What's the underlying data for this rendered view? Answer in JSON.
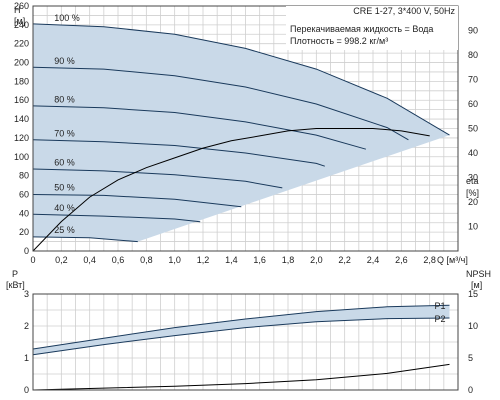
{
  "chart_data": [
    {
      "type": "line",
      "name": "head",
      "header": {
        "model": "CRE 1-27, 3*400 V, 50Hz",
        "liquid": "Перекачиваемая жидкость = Вода",
        "density": "Плотность = 998.2 кг/м³"
      },
      "ylabel_left": [
        "H",
        "[м]"
      ],
      "ylabel_right": [
        "eta",
        "[%]"
      ],
      "xlabel": "Q [м³/ч]",
      "xlim": [
        0,
        3.0
      ],
      "ylim_left": [
        0,
        260
      ],
      "ylim_right": [
        0,
        100
      ],
      "x_ticks": [
        "0",
        "0,2",
        "0,4",
        "0,6",
        "0,8",
        "1,0",
        "1,2",
        "1,4",
        "1,6",
        "1,8",
        "2,0",
        "2,2",
        "2,4",
        "2,6",
        "2,8"
      ],
      "y_ticks_left": [
        "0",
        "20",
        "40",
        "60",
        "80",
        "100",
        "120",
        "140",
        "160",
        "180",
        "200",
        "220",
        "240",
        "260"
      ],
      "y_ticks_right": [
        "10",
        "20",
        "30",
        "40",
        "50",
        "60",
        "70",
        "80",
        "90"
      ],
      "grid": true,
      "colors": {
        "curve": "#1a3a5c",
        "envelope": "#c9d9e8",
        "eta": "#000000"
      },
      "series": [
        {
          "name": "100 %",
          "x": [
            0,
            0.5,
            1.0,
            1.5,
            2.0,
            2.5,
            2.94
          ],
          "values": [
            241,
            238,
            230,
            215,
            193,
            162,
            123
          ]
        },
        {
          "name": "90 %",
          "x": [
            0,
            0.5,
            1.0,
            1.5,
            2.0,
            2.5,
            2.65
          ],
          "values": [
            195,
            193,
            186,
            174,
            156,
            131,
            118
          ]
        },
        {
          "name": "80 %",
          "x": [
            0,
            0.5,
            1.0,
            1.5,
            2.0,
            2.35
          ],
          "values": [
            154,
            152,
            147,
            137,
            123,
            108
          ]
        },
        {
          "name": "70 %",
          "x": [
            0,
            0.5,
            1.0,
            1.5,
            2.0,
            2.06
          ],
          "values": [
            118,
            116,
            112,
            104,
            93,
            90
          ]
        },
        {
          "name": "60 %",
          "x": [
            0,
            0.5,
            1.0,
            1.5,
            1.76
          ],
          "values": [
            87,
            85,
            81,
            74,
            67
          ]
        },
        {
          "name": "50 %",
          "x": [
            0,
            0.5,
            1.0,
            1.47
          ],
          "values": [
            60,
            59,
            55,
            47
          ]
        },
        {
          "name": "40 %",
          "x": [
            0,
            0.5,
            1.0,
            1.18
          ],
          "values": [
            39,
            37,
            34,
            31
          ]
        },
        {
          "name": "25 %",
          "x": [
            0,
            0.4,
            0.74
          ],
          "values": [
            15,
            14,
            10
          ]
        }
      ],
      "eta": {
        "x": [
          0,
          0.2,
          0.4,
          0.6,
          0.8,
          1.0,
          1.2,
          1.4,
          1.6,
          1.8,
          2.0,
          2.2,
          2.4,
          2.6,
          2.8
        ],
        "values": [
          0,
          12,
          22,
          29,
          34,
          38,
          42,
          45,
          47,
          49,
          50,
          50,
          50,
          49,
          47
        ]
      },
      "percent_labels": [
        "100 %",
        "90 %",
        "80 %",
        "70 %",
        "60 %",
        "50 %",
        "40 %",
        "25 %"
      ]
    },
    {
      "type": "line",
      "name": "power",
      "ylabel_left": [
        "P",
        "[кВт]"
      ],
      "ylabel_right": [
        "NPSH",
        "[м]"
      ],
      "xlim": [
        0,
        3.0
      ],
      "ylim_left": [
        0,
        3
      ],
      "ylim_right": [
        0,
        15
      ],
      "y_ticks_left": [
        "0",
        "1",
        "2",
        "3"
      ],
      "y_ticks_right": [
        "0",
        "5",
        "10",
        "15"
      ],
      "grid": true,
      "series": [
        {
          "name": "P1",
          "x": [
            0,
            0.5,
            1.0,
            1.5,
            2.0,
            2.5,
            2.94
          ],
          "values": [
            1.28,
            1.62,
            1.95,
            2.22,
            2.45,
            2.6,
            2.65
          ]
        },
        {
          "name": "P2",
          "x": [
            0,
            0.5,
            1.0,
            1.5,
            2.0,
            2.5,
            2.94
          ],
          "values": [
            1.1,
            1.42,
            1.7,
            1.95,
            2.13,
            2.23,
            2.25
          ]
        }
      ],
      "npsh": {
        "x": [
          0,
          0.5,
          1.0,
          1.5,
          2.0,
          2.5,
          2.94
        ],
        "values": [
          0,
          0.3,
          0.6,
          1.0,
          1.6,
          2.6,
          4.0
        ]
      },
      "series_labels": [
        "P1",
        "P2"
      ]
    }
  ]
}
